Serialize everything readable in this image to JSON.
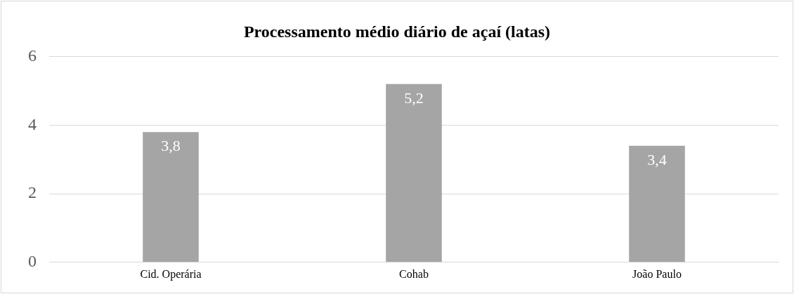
{
  "chart_data": {
    "type": "bar",
    "title": "Processamento médio diário de açaí (latas)",
    "categories": [
      "Cid. Operária",
      "Cohab",
      "João Paulo"
    ],
    "values": [
      3.8,
      5.2,
      3.4
    ],
    "value_labels": [
      "3,8",
      "5,2",
      "3,4"
    ],
    "color": "#a5a5a5",
    "ylim": [
      0,
      6
    ],
    "yticks": [
      0,
      2,
      4,
      6
    ],
    "grid": "y",
    "legend": false
  }
}
